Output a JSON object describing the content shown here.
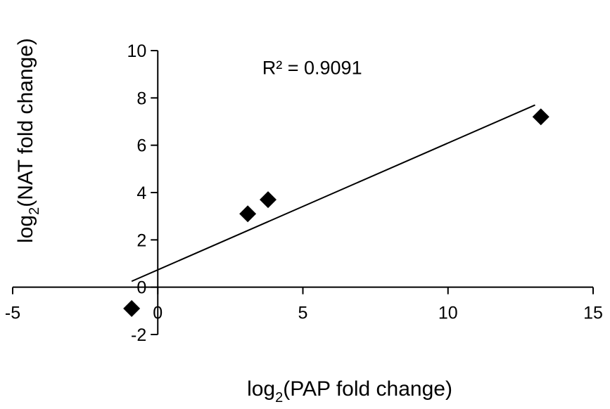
{
  "chart_data": {
    "type": "scatter",
    "x_axis": {
      "label_prefix": "log",
      "label_sub": "2",
      "label_rest": "(PAP fold change)",
      "range": [
        -5,
        15
      ],
      "ticks": [
        -5,
        0,
        5,
        10,
        15
      ],
      "tick_labels": [
        "-5",
        "0",
        "5",
        "10",
        "15"
      ]
    },
    "y_axis": {
      "label_prefix": "log",
      "label_sub": "2",
      "label_rest": "(NAT fold change)",
      "range": [
        -2,
        10
      ],
      "ticks": [
        -2,
        0,
        2,
        4,
        6,
        8,
        10
      ],
      "tick_labels": [
        "-2",
        "0",
        "2",
        "4",
        "6",
        "8",
        "10"
      ]
    },
    "points": [
      {
        "x": -0.9,
        "y": -0.9
      },
      {
        "x": 3.1,
        "y": 3.1
      },
      {
        "x": 3.8,
        "y": 3.7
      },
      {
        "x": 13.2,
        "y": 7.2
      }
    ],
    "trendline": {
      "type": "linear",
      "x_start": -0.9,
      "y_start": 0.25,
      "x_end": 13.0,
      "y_end": 7.7
    },
    "annotation": "R² = 0.9091",
    "annotation_anchor": {
      "x": 3.6,
      "y": 9.0
    },
    "marker": "diamond",
    "marker_color": "#000000",
    "grid": false,
    "legend": "none"
  }
}
